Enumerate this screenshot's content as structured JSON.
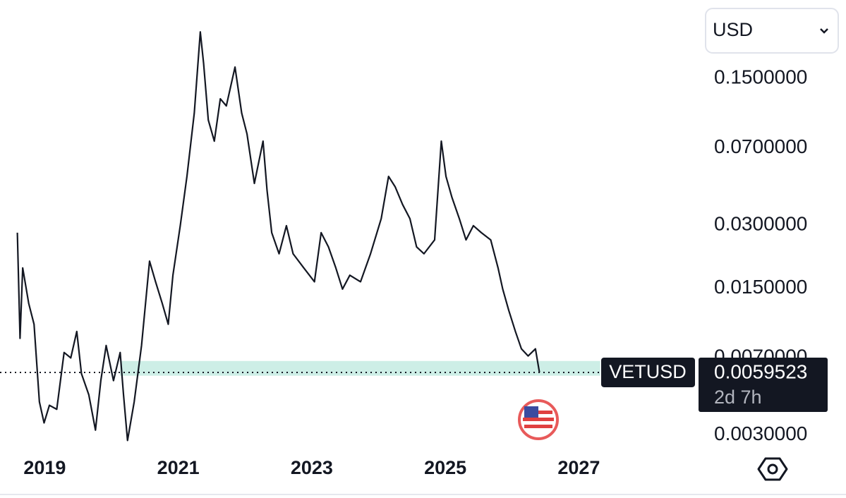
{
  "chart_data": {
    "type": "line",
    "currency": "USD",
    "countdown": "2d 7h",
    "y_scale": "log",
    "grid": false,
    "xlim": [
      2018.33,
      2028.74
    ],
    "ylim": [
      0.0025,
      0.355
    ],
    "xticks": [
      2019,
      2021,
      2023,
      2025,
      2027
    ],
    "yticks": [
      {
        "value": 0.15,
        "label": "0.1500000"
      },
      {
        "value": 0.07,
        "label": "0.0700000"
      },
      {
        "value": 0.03,
        "label": "0.0300000"
      },
      {
        "value": 0.015,
        "label": "0.0150000"
      },
      {
        "value": 0.007,
        "label": "0.0070000"
      },
      {
        "value": 0.003,
        "label": "0.0030000"
      }
    ],
    "zone": {
      "x": [
        2020.13,
        2027.32
      ],
      "y": [
        0.00574,
        0.00675
      ],
      "color": "#cdeee6"
    },
    "series": [
      {
        "name": "VETUSD",
        "color": "#131722",
        "x": [
          2018.59,
          2018.63,
          2018.67,
          2018.76,
          2018.84,
          2018.92,
          2018.99,
          2019.07,
          2019.18,
          2019.29,
          2019.39,
          2019.48,
          2019.55,
          2019.66,
          2019.76,
          2019.84,
          2019.92,
          2020.03,
          2020.13,
          2020.18,
          2020.24,
          2020.34,
          2020.45,
          2020.5,
          2020.57,
          2020.66,
          2020.76,
          2020.85,
          2020.92,
          2021.03,
          2021.13,
          2021.24,
          2021.33,
          2021.38,
          2021.45,
          2021.54,
          2021.63,
          2021.72,
          2021.85,
          2021.95,
          2022.03,
          2022.14,
          2022.27,
          2022.33,
          2022.4,
          2022.51,
          2022.62,
          2022.72,
          2022.88,
          2023.04,
          2023.14,
          2023.25,
          2023.36,
          2023.46,
          2023.57,
          2023.73,
          2023.88,
          2024.04,
          2024.15,
          2024.25,
          2024.36,
          2024.47,
          2024.57,
          2024.68,
          2024.84,
          2024.94,
          2025.01,
          2025.1,
          2025.21,
          2025.31,
          2025.42,
          2025.54,
          2025.68,
          2025.79,
          2025.86,
          2025.95,
          2026.05,
          2026.14,
          2026.24,
          2026.35,
          2026.41
        ],
        "values": [
          0.0276,
          0.00865,
          0.01875,
          0.0127,
          0.0101,
          0.00431,
          0.00342,
          0.00415,
          0.00397,
          0.00741,
          0.00698,
          0.00933,
          0.00587,
          0.00466,
          0.00316,
          0.00544,
          0.008,
          0.00544,
          0.00741,
          0.00466,
          0.00282,
          0.00431,
          0.008,
          0.01177,
          0.0202,
          0.0161,
          0.0127,
          0.0101,
          0.0173,
          0.0298,
          0.0512,
          0.1026,
          0.25,
          0.1766,
          0.095,
          0.0754,
          0.12,
          0.111,
          0.17,
          0.1026,
          0.0815,
          0.0474,
          0.0754,
          0.0439,
          0.0276,
          0.0219,
          0.0298,
          0.0219,
          0.01875,
          0.0161,
          0.0276,
          0.0236,
          0.01875,
          0.01486,
          0.0173,
          0.0161,
          0.0219,
          0.0322,
          0.0512,
          0.0456,
          0.0376,
          0.0322,
          0.0236,
          0.0219,
          0.0255,
          0.0754,
          0.0512,
          0.0406,
          0.0322,
          0.0255,
          0.0298,
          0.0276,
          0.0255,
          0.01875,
          0.01486,
          0.01177,
          0.00933,
          0.00771,
          0.00713,
          0.00771,
          0.0059523
        ]
      }
    ]
  }
}
